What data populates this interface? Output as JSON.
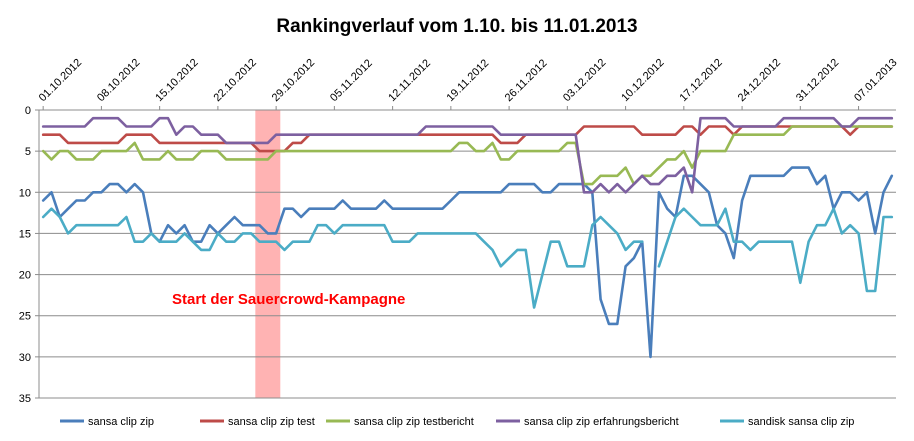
{
  "chart_data": {
    "type": "line",
    "title": "Rankingverlauf vom 1.10.  bis 11.01.2013",
    "xlabel": "",
    "ylabel": "",
    "ylim": [
      0,
      35
    ],
    "y_reversed": true,
    "y_ticks": [
      0,
      5,
      10,
      15,
      20,
      25,
      30,
      35
    ],
    "grid": "horizontal",
    "legend_position": "bottom",
    "x_start": "01.10.2012",
    "x_end": "11.01.2013",
    "x_tick_labels": [
      "01.10.2012",
      "08.10.2012",
      "15.10.2012",
      "22.10.2012",
      "29.10.2012",
      "05.11.2012",
      "12.11.2012",
      "19.11.2012",
      "26.11.2012",
      "03.12.2012",
      "10.12.2012",
      "17.12.2012",
      "24.12.2012",
      "31.12.2012",
      "07.01.2013"
    ],
    "annotation": {
      "text": "Start der Sauercrowd-Kampagne",
      "color": "#ff0000",
      "highlight_from": "27.10.2012",
      "highlight_to": "29.10.2012",
      "highlight_color": "#ffb3b3"
    },
    "series": [
      {
        "name": "sansa clip zip",
        "color": "#4a7ebb",
        "values": [
          11,
          10,
          13,
          12,
          11,
          11,
          10,
          10,
          9,
          9,
          10,
          9,
          10,
          15,
          16,
          14,
          15,
          14,
          16,
          16,
          14,
          15,
          14,
          13,
          14,
          14,
          14,
          15,
          15,
          12,
          12,
          13,
          12,
          12,
          12,
          12,
          11,
          12,
          12,
          12,
          12,
          11,
          12,
          12,
          12,
          12,
          12,
          12,
          12,
          11,
          10,
          10,
          10,
          10,
          10,
          10,
          9,
          9,
          9,
          9,
          10,
          10,
          9,
          9,
          9,
          9,
          10,
          23,
          26,
          26,
          19,
          18,
          16,
          30,
          10,
          12,
          13,
          8,
          8,
          9,
          10,
          14,
          15,
          18,
          11,
          8,
          8,
          8,
          8,
          8,
          7,
          7,
          7,
          9,
          8,
          12,
          10,
          10,
          11,
          10,
          15,
          10,
          8
        ]
      },
      {
        "name": "sansa clip zip test",
        "color": "#be4b48",
        "values": [
          3,
          3,
          3,
          4,
          4,
          4,
          4,
          4,
          4,
          4,
          3,
          3,
          3,
          3,
          4,
          4,
          4,
          4,
          4,
          4,
          4,
          4,
          4,
          4,
          4,
          4,
          5,
          5,
          5,
          5,
          4,
          4,
          3,
          3,
          3,
          3,
          3,
          3,
          3,
          3,
          3,
          3,
          3,
          3,
          3,
          3,
          3,
          3,
          3,
          3,
          3,
          3,
          3,
          3,
          3,
          4,
          4,
          4,
          3,
          3,
          3,
          3,
          3,
          3,
          3,
          2,
          2,
          2,
          2,
          2,
          2,
          2,
          3,
          3,
          3,
          3,
          3,
          2,
          2,
          3,
          2,
          2,
          2,
          3,
          2,
          2,
          2,
          2,
          2,
          2,
          2,
          2,
          2,
          2,
          2,
          2,
          2,
          3,
          2,
          2,
          2,
          2,
          2
        ]
      },
      {
        "name": "sansa clip zip testbericht",
        "color": "#98b954",
        "values": [
          5,
          6,
          5,
          5,
          6,
          6,
          6,
          5,
          5,
          5,
          5,
          4,
          6,
          6,
          6,
          5,
          6,
          6,
          6,
          5,
          5,
          5,
          6,
          6,
          6,
          6,
          6,
          6,
          5,
          5,
          5,
          5,
          5,
          5,
          5,
          5,
          5,
          5,
          5,
          5,
          5,
          5,
          5,
          5,
          5,
          5,
          5,
          5,
          5,
          5,
          4,
          4,
          5,
          5,
          4,
          6,
          6,
          5,
          5,
          5,
          5,
          5,
          5,
          4,
          4,
          9,
          9,
          8,
          8,
          8,
          7,
          9,
          8,
          8,
          7,
          6,
          6,
          5,
          7,
          5,
          5,
          5,
          5,
          3,
          3,
          3,
          3,
          3,
          3,
          3,
          2,
          2,
          2,
          2,
          2,
          2,
          2,
          2,
          2,
          2,
          2,
          2,
          2
        ]
      },
      {
        "name": "sansa clip zip erfahrungsbericht",
        "color": "#7d60a0",
        "values": [
          2,
          2,
          2,
          2,
          2,
          2,
          1,
          1,
          1,
          1,
          2,
          2,
          2,
          2,
          1,
          1,
          3,
          2,
          2,
          3,
          3,
          3,
          4,
          4,
          4,
          4,
          4,
          4,
          3,
          3,
          3,
          3,
          3,
          3,
          3,
          3,
          3,
          3,
          3,
          3,
          3,
          3,
          3,
          3,
          3,
          3,
          2,
          2,
          2,
          2,
          2,
          2,
          2,
          2,
          2,
          3,
          3,
          3,
          3,
          3,
          3,
          3,
          3,
          3,
          3,
          10,
          10,
          9,
          10,
          9,
          10,
          9,
          8,
          9,
          9,
          8,
          8,
          7,
          10,
          1,
          1,
          1,
          1,
          2,
          2,
          2,
          2,
          2,
          2,
          1,
          1,
          1,
          1,
          1,
          1,
          1,
          2,
          2,
          1,
          1,
          1,
          1,
          1
        ]
      },
      {
        "name": "sandisk sansa clip zip",
        "color": "#4bacc6",
        "values": [
          13,
          12,
          13,
          15,
          14,
          14,
          14,
          14,
          14,
          14,
          13,
          16,
          16,
          15,
          16,
          16,
          16,
          15,
          16,
          17,
          17,
          15,
          16,
          16,
          15,
          15,
          16,
          16,
          16,
          17,
          16,
          16,
          16,
          14,
          14,
          15,
          14,
          14,
          14,
          14,
          14,
          14,
          16,
          16,
          16,
          15,
          15,
          15,
          15,
          15,
          15,
          15,
          15,
          16,
          17,
          19,
          18,
          17,
          17,
          24,
          20,
          16,
          16,
          19,
          19,
          19,
          14,
          13,
          14,
          15,
          17,
          16,
          16,
          null,
          19,
          16,
          13,
          12,
          13,
          14,
          14,
          14,
          12,
          16,
          16,
          17,
          16,
          16,
          16,
          16,
          16,
          21,
          16,
          14,
          14,
          12,
          15,
          14,
          15,
          22,
          22,
          13,
          13
        ]
      }
    ]
  }
}
